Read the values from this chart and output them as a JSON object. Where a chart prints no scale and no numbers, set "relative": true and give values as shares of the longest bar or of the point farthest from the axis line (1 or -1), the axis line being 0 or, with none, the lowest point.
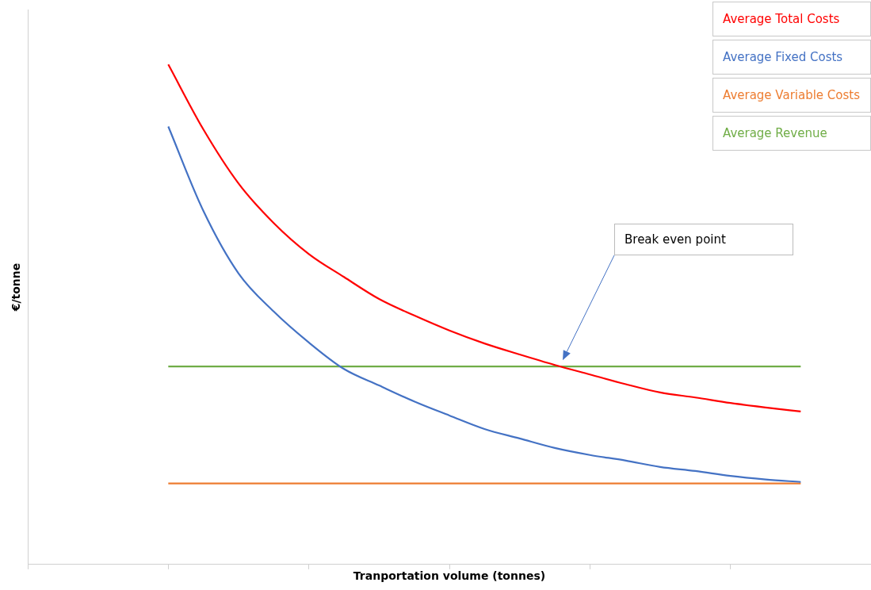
{
  "chart_data": {
    "type": "line",
    "relative": true,
    "xlabel": "Tranportation volume (tonnes)",
    "ylabel": "€/tonne",
    "categories": [
      null,
      null,
      null,
      null,
      null,
      null,
      null,
      null,
      null,
      null,
      null,
      null,
      null,
      null,
      null,
      null,
      null,
      null,
      null,
      null,
      null,
      null,
      null,
      null,
      null
    ],
    "series": [
      {
        "name": "Average Total Costs",
        "color": "#ff0000",
        "values": [
          null,
          null,
          null,
          null,
          1,
          0.87,
          0.762,
          0.683,
          0.621,
          0.575,
          0.531,
          0.498,
          0.468,
          0.442,
          0.42,
          0.399,
          0.38,
          0.361,
          0.344,
          0.334,
          0.323,
          0.314,
          0.306,
          null,
          null
        ]
      },
      {
        "name": "Average Fixed Costs",
        "color": "#4472c4",
        "values": [
          null,
          null,
          null,
          null,
          0.876,
          0.707,
          0.582,
          0.506,
          0.444,
          0.391,
          0.358,
          0.326,
          0.298,
          0.271,
          0.252,
          0.233,
          0.219,
          0.208,
          0.195,
          0.187,
          0.177,
          0.17,
          0.165,
          null,
          null
        ]
      },
      {
        "name": "Average Variable Costs",
        "color": "#ed7d31",
        "values": [
          null,
          null,
          null,
          null,
          0.162,
          0.162,
          0.162,
          0.162,
          0.162,
          0.162,
          0.162,
          0.162,
          0.162,
          0.162,
          0.162,
          0.162,
          0.162,
          0.162,
          0.162,
          0.162,
          0.162,
          0.162,
          0.162,
          null,
          null
        ]
      },
      {
        "name": "Average Revenue",
        "color": "#70ad47",
        "values": [
          null,
          null,
          null,
          null,
          0.396,
          0.396,
          0.396,
          0.396,
          0.396,
          0.396,
          0.396,
          0.396,
          0.396,
          0.396,
          0.396,
          0.396,
          0.396,
          0.396,
          0.396,
          0.396,
          0.396,
          0.396,
          0.396,
          null,
          null
        ]
      }
    ],
    "annotations": [
      "Break even point"
    ],
    "legend": "top right",
    "grid": false,
    "marker": "none",
    "line_style": "solid"
  }
}
